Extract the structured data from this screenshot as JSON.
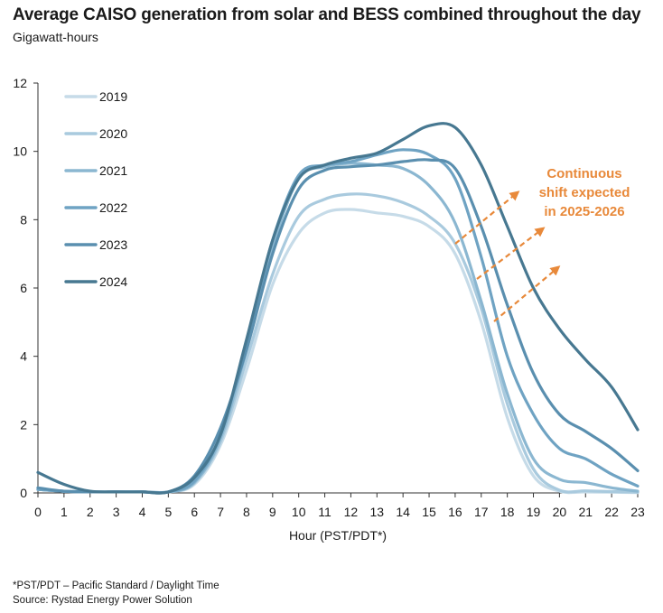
{
  "header": {
    "title": "Average CAISO generation from solar and BESS combined throughout the day",
    "subtitle": "Gigawatt-hours"
  },
  "footer": {
    "note": "*PST/PDT – Pacific Standard / Daylight Time",
    "source": "Source: Rystad Energy Power Solution"
  },
  "chart_data": {
    "type": "line",
    "title": "Average CAISO generation from solar and BESS combined throughout the day",
    "ylabel": "Gigawatt-hours",
    "xlabel": "Hour (PST/PDT*)",
    "x": [
      0,
      1,
      2,
      3,
      4,
      5,
      6,
      7,
      8,
      9,
      10,
      11,
      12,
      13,
      14,
      15,
      16,
      17,
      18,
      19,
      20,
      21,
      22,
      23
    ],
    "xlim": [
      0,
      23
    ],
    "ylim": [
      0,
      12
    ],
    "yticks": [
      0,
      2,
      4,
      6,
      8,
      10,
      12
    ],
    "grid": false,
    "legend_position": "top-left",
    "annotation": {
      "text": [
        "Continuous",
        "shift expected",
        "in 2025-2026"
      ],
      "color": "#E8893A"
    },
    "series": [
      {
        "name": "2019",
        "color": "#C6DBE8",
        "values": [
          0.1,
          0.05,
          0.03,
          0.03,
          0.03,
          0.03,
          0.25,
          1.4,
          3.6,
          6.1,
          7.6,
          8.2,
          8.3,
          8.2,
          8.1,
          7.8,
          7.0,
          5.0,
          2.2,
          0.5,
          0.05,
          0.03,
          0.02,
          0.01
        ]
      },
      {
        "name": "2020",
        "color": "#A9CADE",
        "values": [
          0.1,
          0.05,
          0.03,
          0.03,
          0.03,
          0.03,
          0.3,
          1.5,
          3.9,
          6.4,
          8.1,
          8.6,
          8.75,
          8.7,
          8.5,
          8.1,
          7.3,
          5.4,
          2.6,
          0.7,
          0.08,
          0.06,
          0.04,
          0.02
        ]
      },
      {
        "name": "2021",
        "color": "#8BB7D1",
        "values": [
          0.1,
          0.05,
          0.03,
          0.03,
          0.03,
          0.03,
          0.3,
          1.6,
          4.2,
          7.2,
          9.2,
          9.55,
          9.65,
          9.6,
          9.5,
          9.0,
          7.9,
          5.6,
          2.9,
          1.0,
          0.4,
          0.3,
          0.15,
          0.05
        ]
      },
      {
        "name": "2022",
        "color": "#6FA3C3",
        "values": [
          0.1,
          0.05,
          0.03,
          0.03,
          0.03,
          0.03,
          0.35,
          1.7,
          4.4,
          7.4,
          9.3,
          9.6,
          9.7,
          9.9,
          10.05,
          9.9,
          9.2,
          6.9,
          4.0,
          2.3,
          1.3,
          1.0,
          0.55,
          0.2
        ]
      },
      {
        "name": "2023",
        "color": "#5A8FAF",
        "values": [
          0.15,
          0.05,
          0.03,
          0.03,
          0.03,
          0.03,
          0.5,
          1.9,
          4.2,
          7.0,
          8.9,
          9.45,
          9.55,
          9.6,
          9.7,
          9.75,
          9.5,
          7.8,
          5.5,
          3.5,
          2.3,
          1.8,
          1.3,
          0.65
        ]
      },
      {
        "name": "2024",
        "color": "#477891",
        "values": [
          0.6,
          0.25,
          0.05,
          0.03,
          0.03,
          0.03,
          0.45,
          1.7,
          4.5,
          7.4,
          9.2,
          9.6,
          9.8,
          9.95,
          10.35,
          10.75,
          10.7,
          9.6,
          7.8,
          6.0,
          4.8,
          3.9,
          3.1,
          1.85
        ]
      }
    ]
  }
}
